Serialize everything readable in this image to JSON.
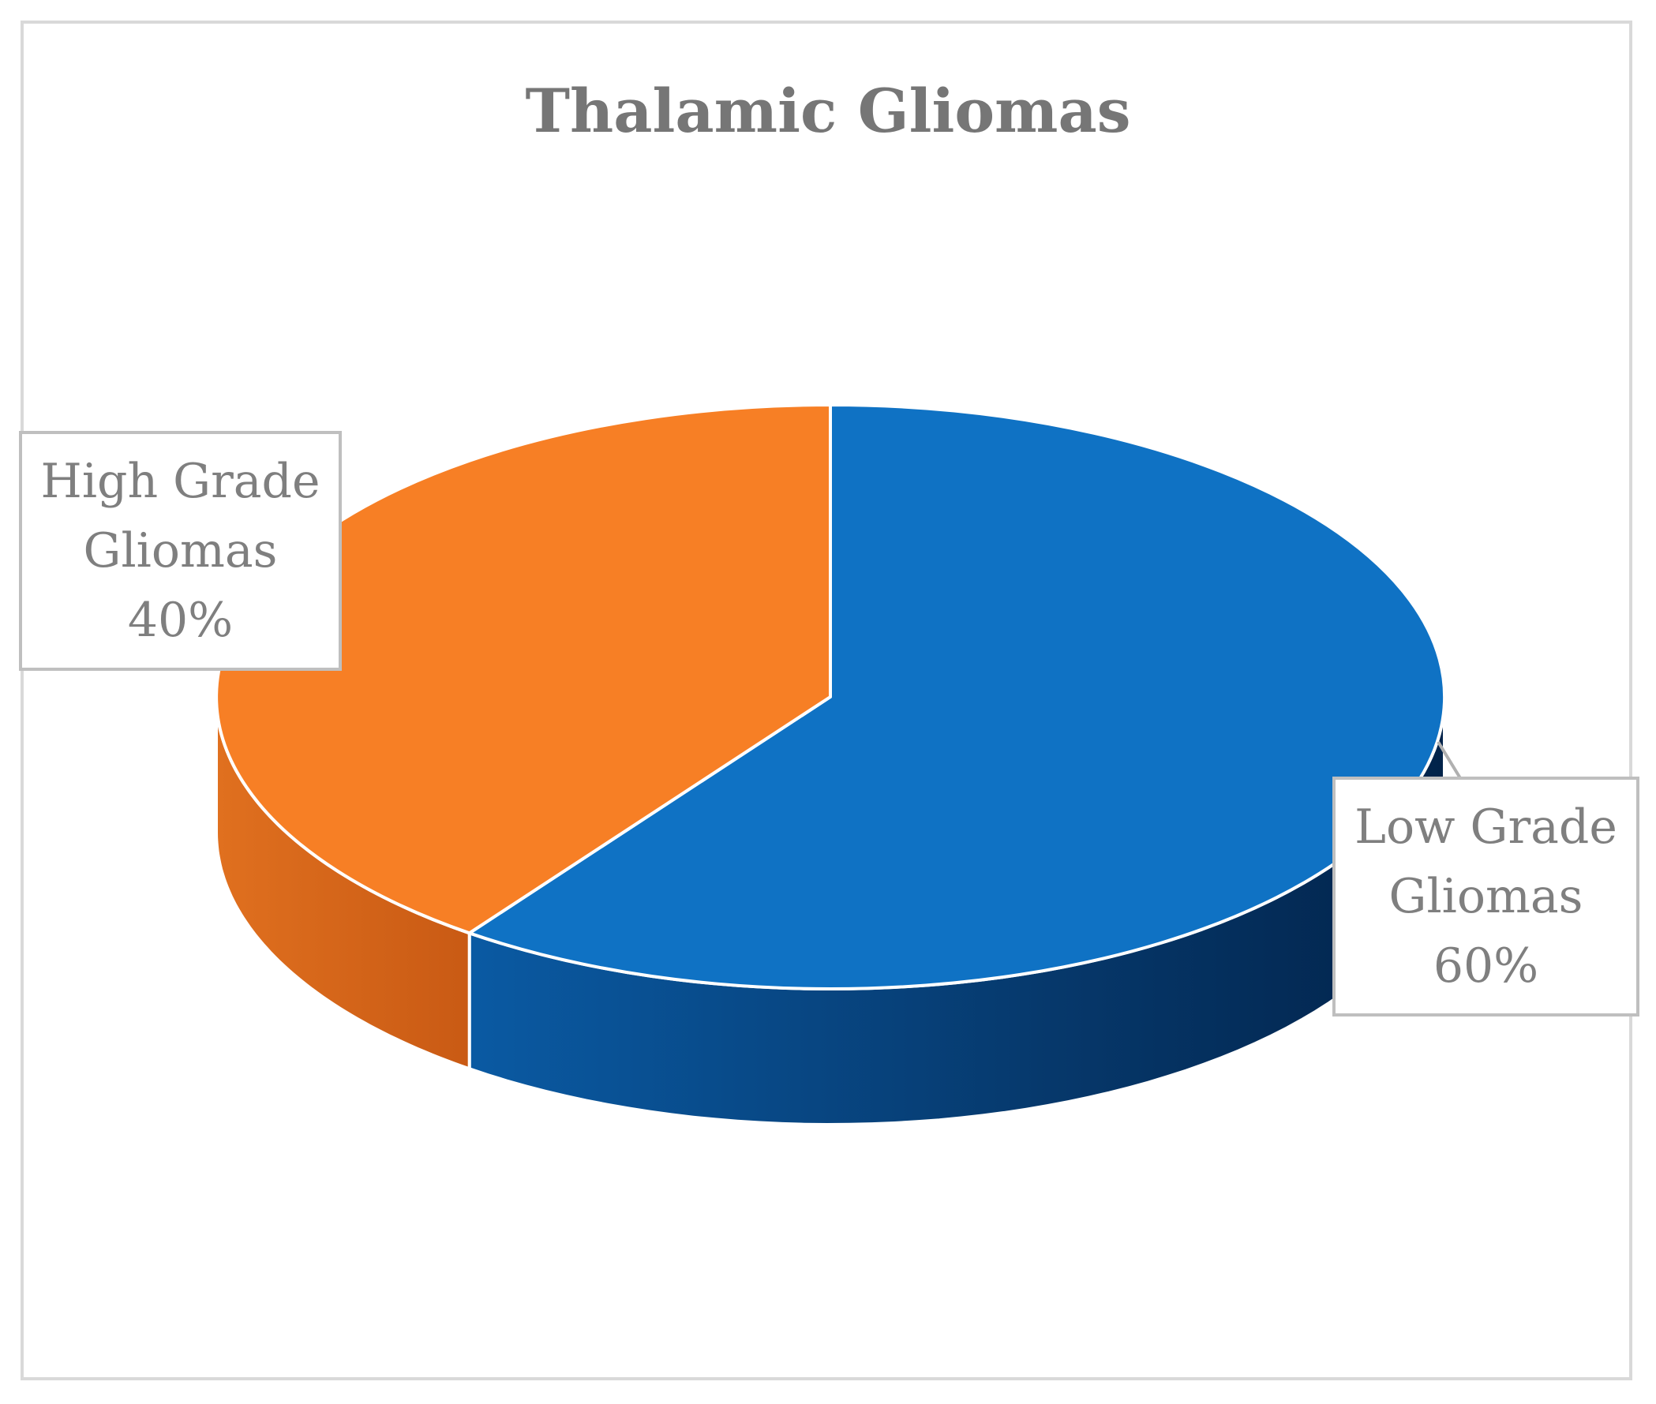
{
  "chart_data": {
    "type": "pie",
    "title": "Thalamic Gliomas",
    "three_d": true,
    "slices": [
      {
        "label_lines": [
          "Low Grade",
          "Gliomas",
          "60%"
        ],
        "value": 60,
        "color": "#0f72c4",
        "side_color": "#063f7a"
      },
      {
        "label_lines": [
          "High Grade",
          "Gliomas",
          "40%"
        ],
        "value": 40,
        "color": "#f77f25",
        "side_color": "#d3621a"
      }
    ],
    "legend": "none",
    "data_labels": "callouts"
  }
}
